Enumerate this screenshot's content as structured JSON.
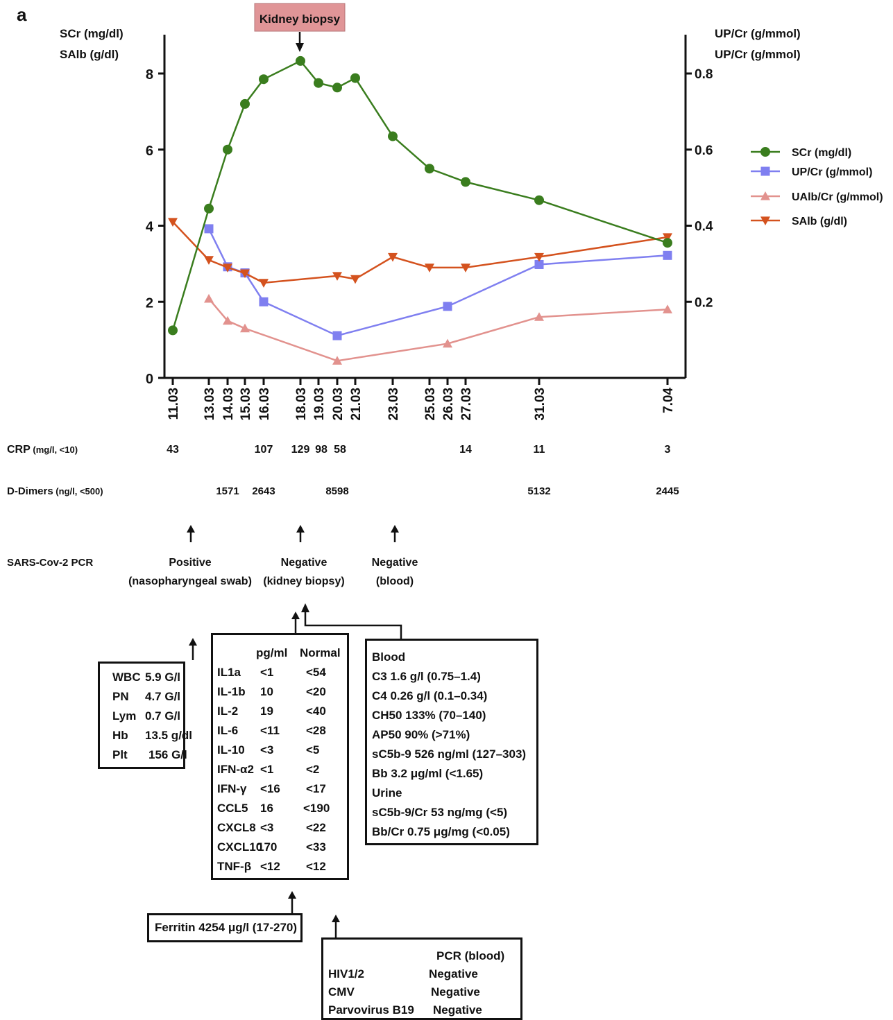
{
  "panel_label": "a",
  "chart_data": {
    "type": "line",
    "x": [
      "11.03",
      "13.03",
      "14.03",
      "15.03",
      "16.03",
      "18.03",
      "19.03",
      "20.03",
      "21.03",
      "23.03",
      "25.03",
      "26.03",
      "27.03",
      "31.03",
      "7.04"
    ],
    "left_axis_labels": [
      "SCr  (mg/dl)",
      "SAlb  (g/dl)"
    ],
    "right_axis_labels": [
      "UP/Cr  (g/mmol)",
      "UP/Cr  (g/mmol)"
    ],
    "y_left_ticks": [
      "0",
      "2",
      "4",
      "6",
      "8"
    ],
    "y_right_ticks": [
      "0.2",
      "0.4",
      "0.6",
      "0.8"
    ],
    "ylim_left": [
      0,
      9
    ],
    "ylim_right": [
      0,
      0.9
    ],
    "grid": false,
    "legend_position": "right",
    "series": [
      {
        "name": "SCr (mg/dl)",
        "axis": "left",
        "marker": "circle",
        "color": "#3a7d1e",
        "x": [
          "11.03",
          "13.03",
          "14.03",
          "15.03",
          "16.03",
          "18.03",
          "19.03",
          "20.03",
          "21.03",
          "23.03",
          "25.03",
          "27.03",
          "31.03",
          "7.04"
        ],
        "values": [
          1.25,
          4.45,
          6.0,
          7.2,
          7.85,
          8.33,
          7.75,
          7.63,
          7.88,
          6.35,
          5.5,
          5.15,
          4.67,
          3.55
        ]
      },
      {
        "name": "UP/Cr (g/mmol)",
        "axis": "right",
        "marker": "square",
        "color": "#7f7ff0",
        "x": [
          "13.03",
          "14.03",
          "15.03",
          "16.03",
          "20.03",
          "26.03",
          "31.03",
          "7.04"
        ],
        "values": [
          0.392,
          0.292,
          0.276,
          0.2,
          0.111,
          0.188,
          0.298,
          0.322
        ]
      },
      {
        "name": "UAlb/Cr (g/mmol)",
        "axis": "right",
        "marker": "triangle-up",
        "color": "#e2928e",
        "x": [
          "13.03",
          "14.03",
          "15.03",
          "20.03",
          "26.03",
          "31.03",
          "7.04"
        ],
        "values": [
          0.208,
          0.15,
          0.13,
          0.045,
          0.09,
          0.16,
          0.18
        ]
      },
      {
        "name": "SAlb (g/dl)",
        "axis": "left",
        "marker": "triangle-down",
        "color": "#d4521e",
        "x": [
          "11.03",
          "13.03",
          "14.03",
          "15.03",
          "16.03",
          "20.03",
          "21.03",
          "23.03",
          "25.03",
          "27.03",
          "31.03",
          "7.04"
        ],
        "values": [
          4.1,
          3.1,
          2.9,
          2.75,
          2.5,
          2.68,
          2.6,
          3.18,
          2.9,
          2.9,
          3.18,
          3.7
        ]
      }
    ],
    "annotations": [
      {
        "text": "Kidney biopsy",
        "x": "18.03",
        "color": "#e09597"
      }
    ]
  },
  "rows": {
    "crp": {
      "label": "CRP",
      "sub": " (mg/l, <10)",
      "entries": [
        {
          "x": "11.03",
          "v": "43"
        },
        {
          "x": "16.03",
          "v": "107"
        },
        {
          "x": "18.03",
          "v": "129"
        },
        {
          "x": "19.03",
          "v": "98"
        },
        {
          "x": "20.03",
          "v": "58"
        },
        {
          "x": "27.03",
          "v": "14"
        },
        {
          "x": "31.03",
          "v": "11"
        },
        {
          "x": "7.04",
          "v": "3"
        }
      ]
    },
    "ddimers": {
      "label": "D-Dimers",
      "sub": " (ng/l, <500)",
      "entries": [
        {
          "x": "14.03",
          "v": "1571"
        },
        {
          "x": "16.03",
          "v": "2643"
        },
        {
          "x": "20.03",
          "v": "8598"
        },
        {
          "x": "31.03",
          "v": "5132"
        },
        {
          "x": "7.04",
          "v": "2445"
        }
      ]
    },
    "pcr": {
      "label": "SARS-Cov-2 PCR",
      "entries": [
        {
          "x": "13.03",
          "line1": "Positive",
          "line2": "(nasopharyngeal swab)"
        },
        {
          "x": "18.03",
          "line1": "Negative",
          "line2": "(kidney biopsy)"
        },
        {
          "x": "23.03",
          "line1": "Negative",
          "line2": "(blood)"
        }
      ]
    }
  },
  "cbc": [
    [
      "WBC",
      "5.9 G/l"
    ],
    [
      "PN",
      "4.7 G/l"
    ],
    [
      "Lym",
      "0.7 G/l"
    ],
    [
      "Hb",
      "13.5 g/dl"
    ],
    [
      "Plt",
      "156 G/l"
    ]
  ],
  "cytokines": {
    "header": [
      "pg/ml",
      "Normal"
    ],
    "rows": [
      [
        "IL1a",
        "<1",
        "<54"
      ],
      [
        "IL-1b",
        "10",
        "<20"
      ],
      [
        "IL-2",
        "19",
        "<40"
      ],
      [
        "IL-6",
        "<11",
        "<28"
      ],
      [
        "IL-10",
        "<3",
        "<5"
      ],
      [
        "IFN-α2",
        "<1",
        "<2"
      ],
      [
        "IFN-γ",
        "<16",
        "<17"
      ],
      [
        "CCL5",
        "16",
        "<190"
      ],
      [
        "CXCL8",
        "<3",
        "<22"
      ],
      [
        "CXCL10",
        "170",
        "<33"
      ],
      [
        "TNF-β",
        "<12",
        "<12"
      ]
    ]
  },
  "complement": {
    "lines": [
      "Blood",
      "C3 1.6 g/l (0.75–1.4)",
      "C4 0.26 g/l (0.1–0.34)",
      "CH50  133% (70–140)",
      "AP50   90%  (>71%)",
      "sC5b-9  526 ng/ml (127–303)",
      "Bb   3.2 μg/ml  (<1.65)",
      "Urine",
      "sC5b-9/Cr  53 ng/mg (<5)",
      "Bb/Cr  0.75 μg/mg  (<0.05)"
    ]
  },
  "ferritin": "Ferritin 4254 μg/l (17-270)",
  "viral": {
    "header": "PCR (blood)",
    "rows": [
      [
        "HIV1/2",
        "Negative"
      ],
      [
        "CMV",
        "Negative"
      ],
      [
        "Parvovirus B19",
        "Negative"
      ]
    ]
  }
}
